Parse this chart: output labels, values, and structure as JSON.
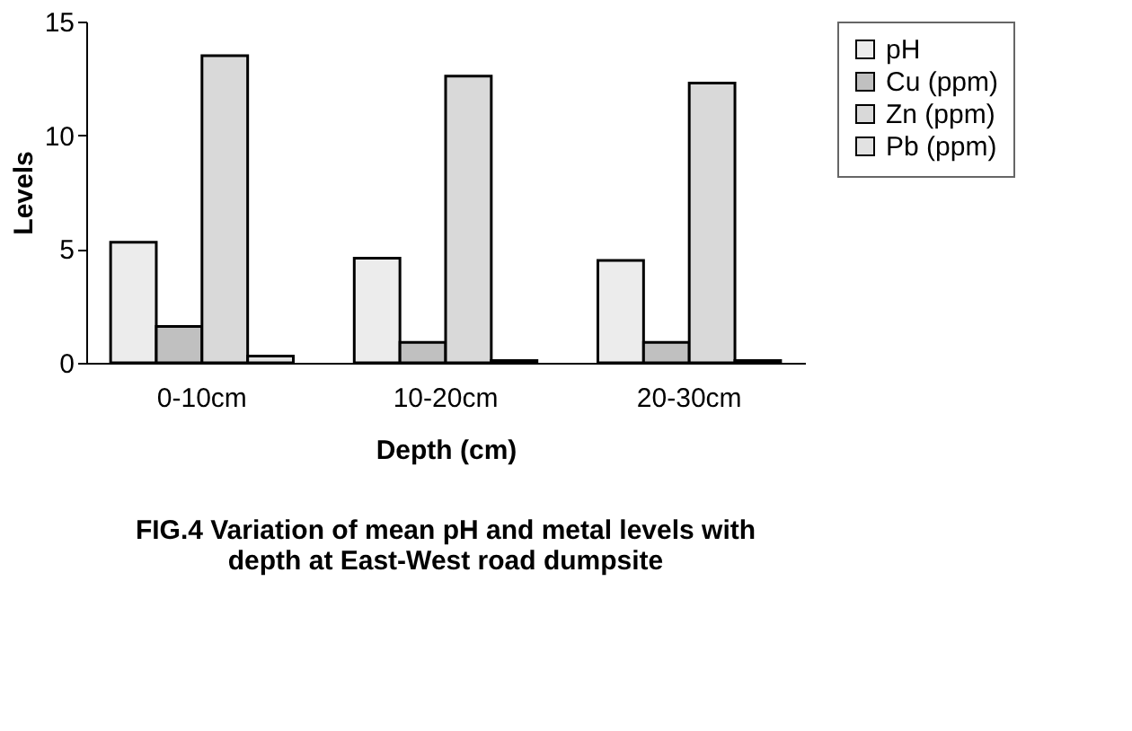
{
  "chart_data": {
    "type": "bar",
    "title": "FIG.4 Variation of mean pH and metal levels with depth at East-West road dumpsite",
    "xlabel": "Depth (cm)",
    "ylabel": "Levels",
    "categories": [
      "0-10cm",
      "10-20cm",
      "20-30cm"
    ],
    "series": [
      {
        "name": "pH",
        "color": "#ececec",
        "values": [
          5.3,
          4.6,
          4.5
        ]
      },
      {
        "name": "Cu (ppm)",
        "color": "#c0c0c0",
        "values": [
          1.6,
          0.9,
          0.9
        ]
      },
      {
        "name": "Zn (ppm)",
        "color": "#d9d9d9",
        "values": [
          13.5,
          12.6,
          12.3
        ]
      },
      {
        "name": "Pb (ppm)",
        "color": "#e2e2e2",
        "values": [
          0.3,
          0.1,
          0.1
        ]
      }
    ],
    "ylim": [
      0,
      15
    ],
    "yticks": [
      0,
      5,
      10,
      15
    ],
    "grid": false,
    "legend": "top right"
  }
}
